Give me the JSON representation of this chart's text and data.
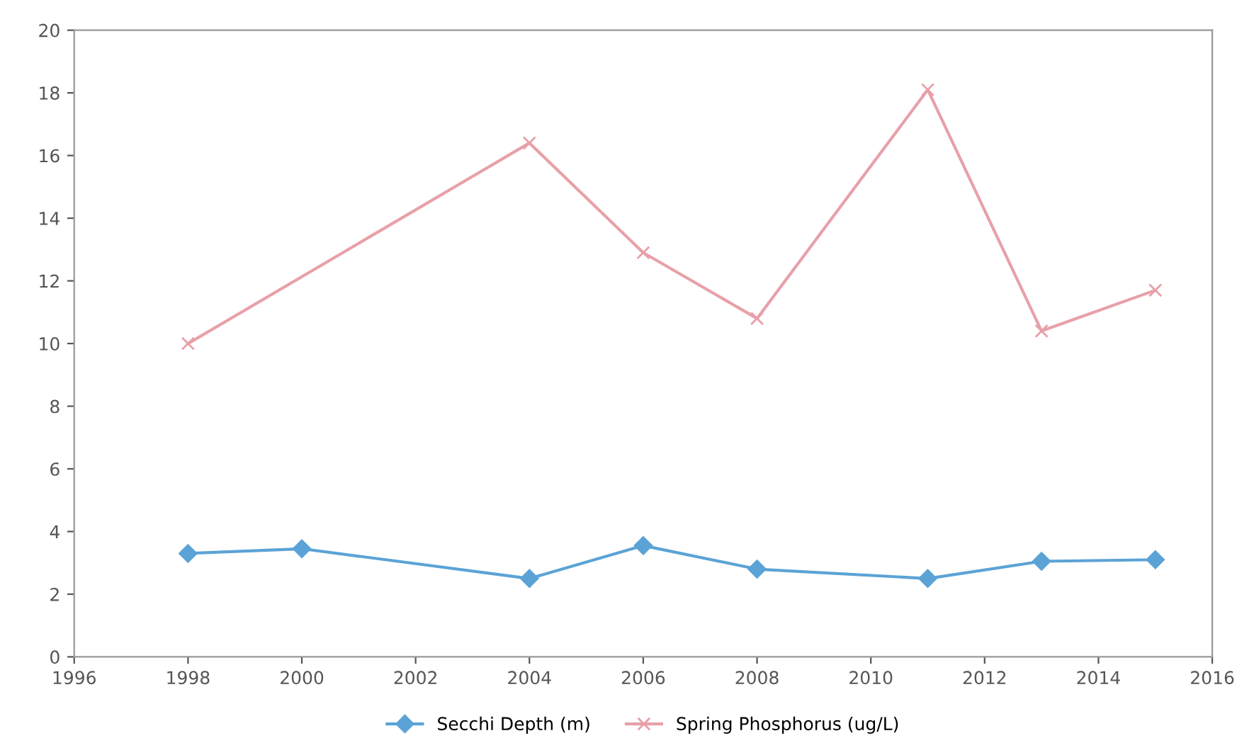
{
  "chart_data": {
    "type": "line",
    "x": [
      1998,
      2000,
      2004,
      2006,
      2008,
      2011,
      2013,
      2015
    ],
    "series": [
      {
        "name": "Secchi Depth (m)",
        "color": "#5ba3d6",
        "marker": "diamond",
        "values": [
          3.3,
          3.45,
          2.5,
          3.55,
          2.8,
          2.5,
          3.05,
          3.1
        ]
      },
      {
        "name": "Spring Phosphorus (ug/L)",
        "color": "#e8a0a8",
        "marker": "cross",
        "x": [
          1998,
          2004,
          2006,
          2008,
          2011,
          2013,
          2015
        ],
        "values": [
          10.0,
          16.4,
          12.9,
          10.8,
          18.1,
          10.4,
          11.7
        ]
      }
    ],
    "xlim": [
      1996,
      2016
    ],
    "xticks": [
      1996,
      1998,
      2000,
      2002,
      2004,
      2006,
      2008,
      2010,
      2012,
      2014,
      2016
    ],
    "ylim": [
      0,
      20
    ],
    "yticks": [
      0,
      2,
      4,
      6,
      8,
      10,
      12,
      14,
      16,
      18,
      20
    ],
    "grid": false,
    "legend": "bottom",
    "line_style": "solid"
  }
}
